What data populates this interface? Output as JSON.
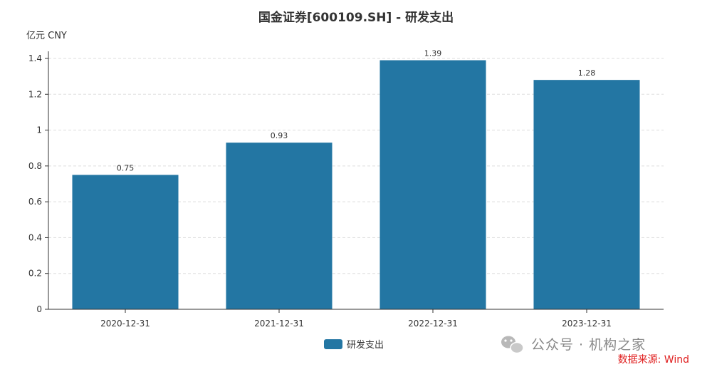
{
  "chart_data": {
    "type": "bar",
    "title": "国金证券[600109.SH] - 研发支出",
    "unit_label": "亿元  CNY",
    "xlabel": "",
    "ylabel": "",
    "categories": [
      "2020-12-31",
      "2021-12-31",
      "2022-12-31",
      "2023-12-31"
    ],
    "series": [
      {
        "name": "研发支出",
        "values": [
          0.75,
          0.93,
          1.39,
          1.28
        ],
        "color": "#2376a3"
      }
    ],
    "ylim": [
      0,
      1.4
    ],
    "yticks": [
      0,
      0.2,
      0.4,
      0.6,
      0.8,
      1,
      1.2,
      1.4
    ],
    "grid": true,
    "legend": "bottom-center",
    "data_labels": true
  },
  "watermark": {
    "text": "公众号 · 机构之家",
    "icon": "wechat-icon"
  },
  "source_note": "数据来源: Wind",
  "colors": {
    "bar": "#2376a3",
    "source": "#e02020"
  }
}
